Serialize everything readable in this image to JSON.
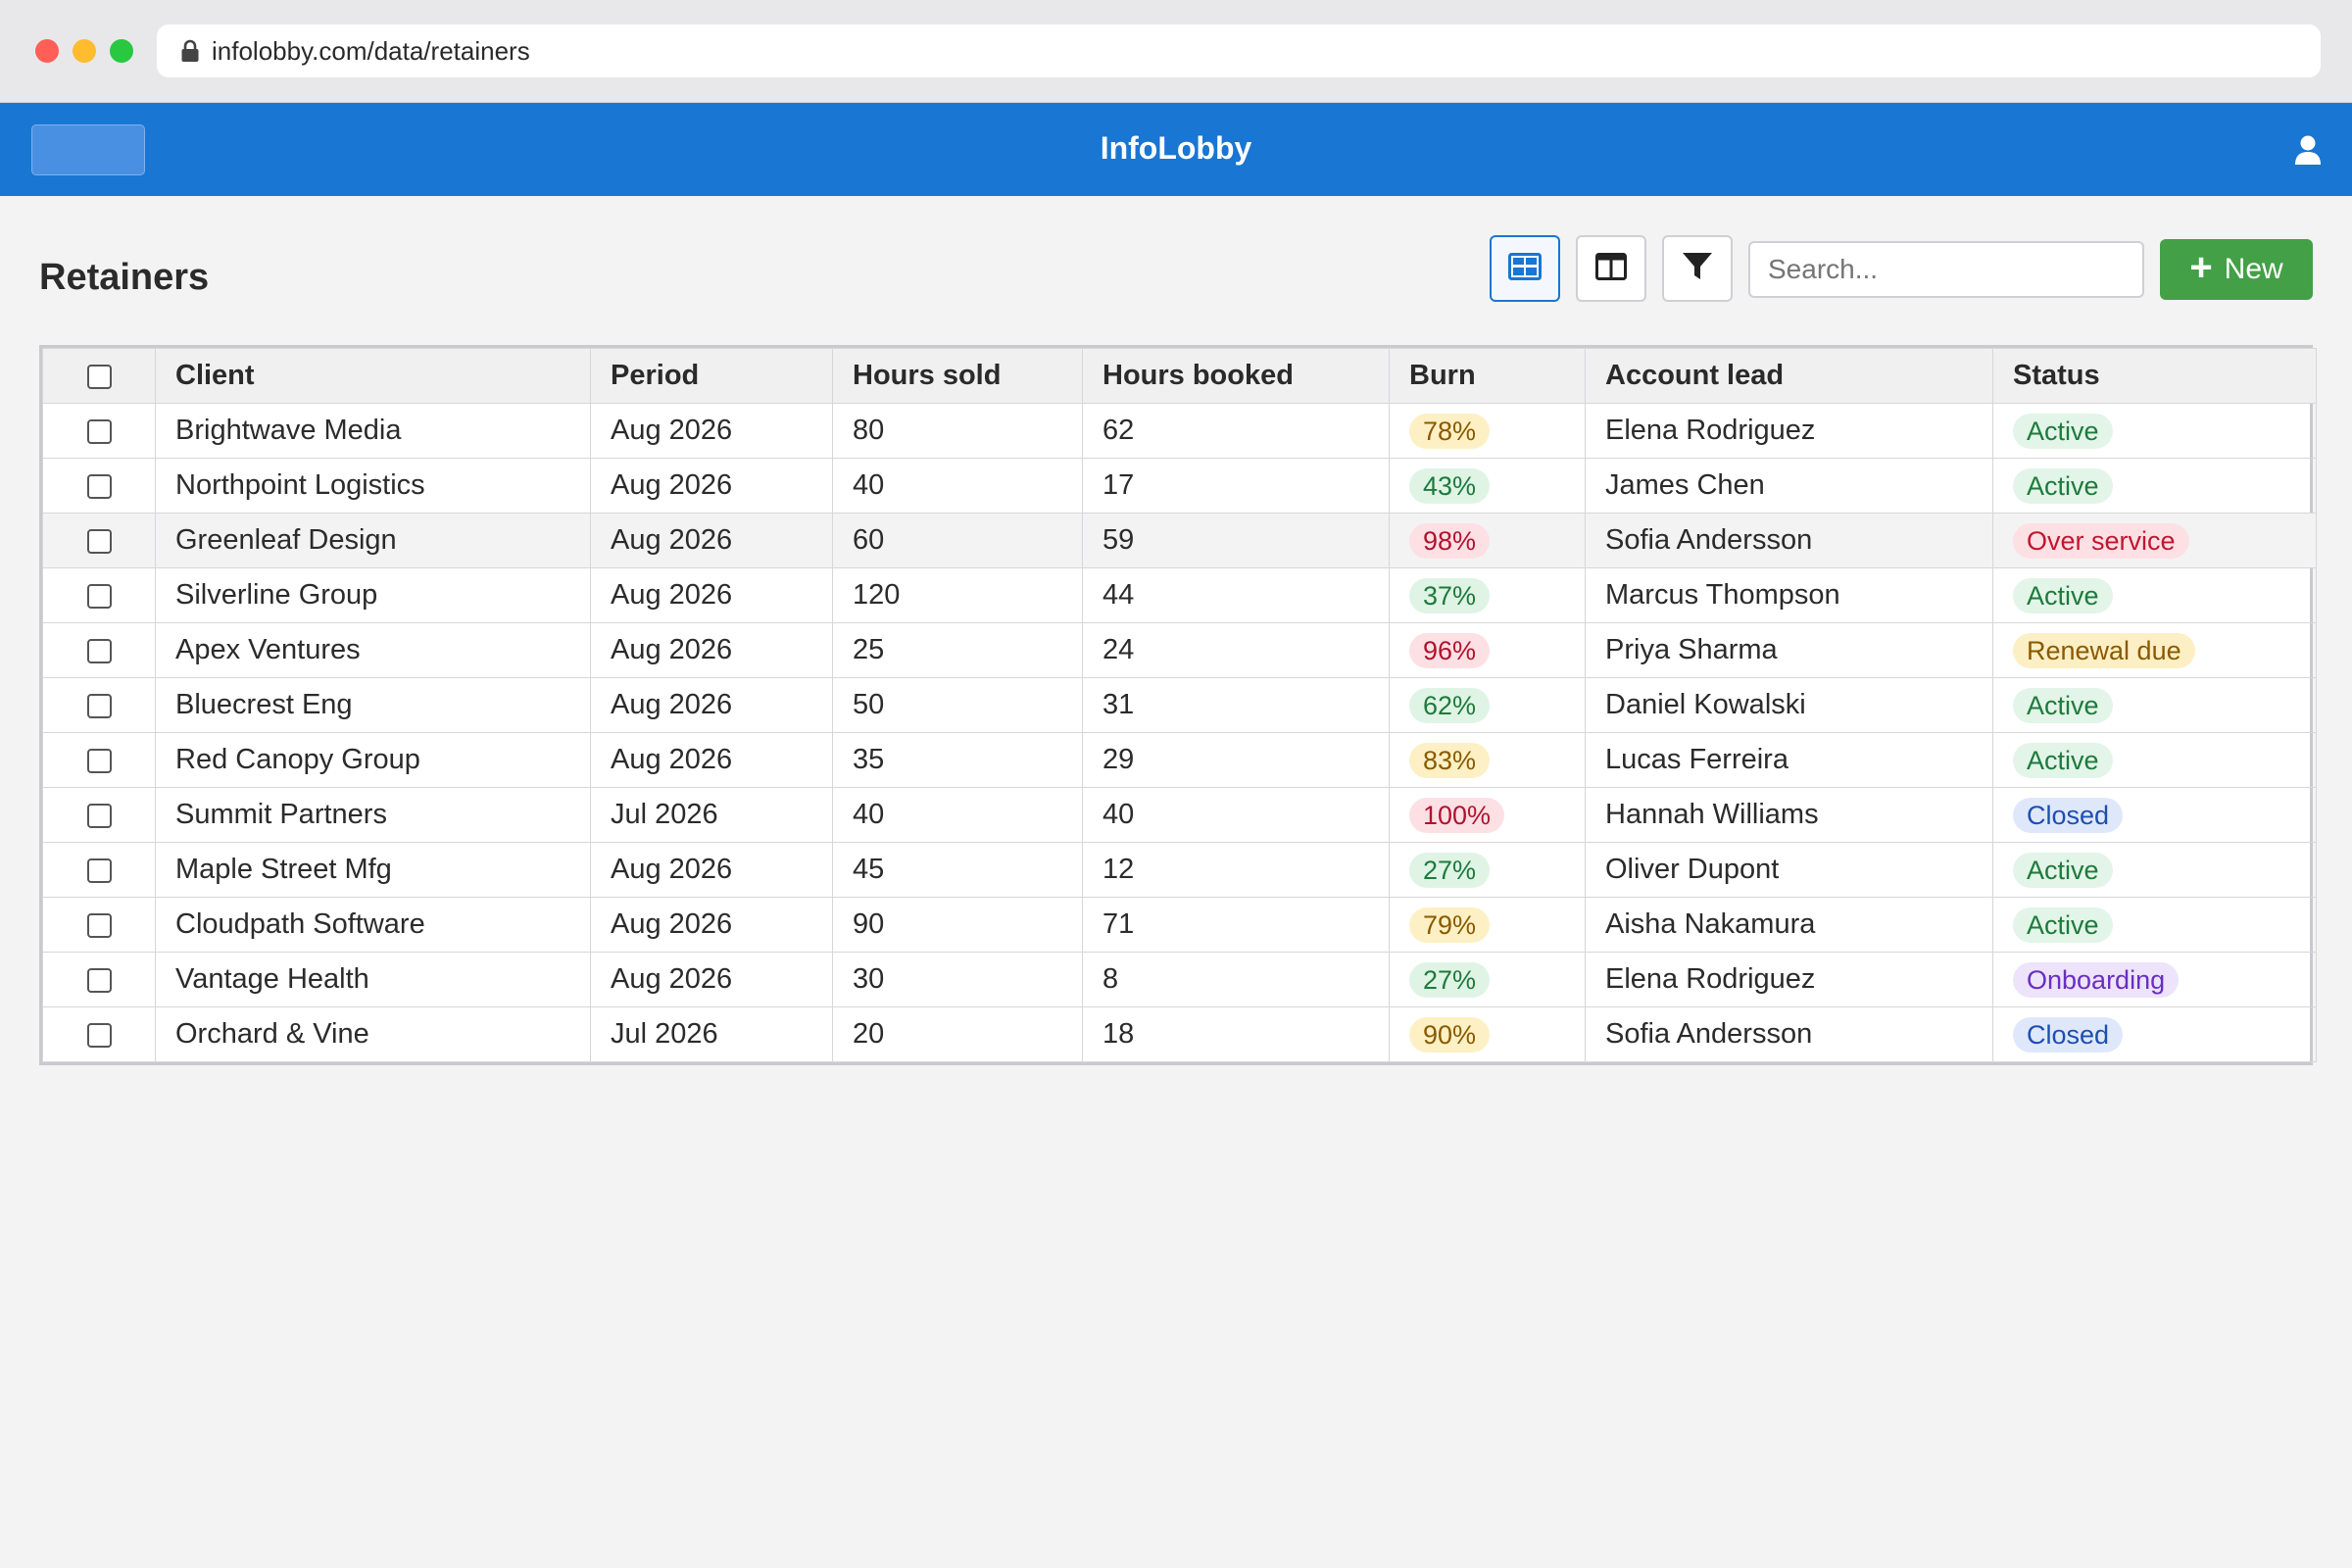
{
  "browser": {
    "url": "infolobby.com/data/retainers"
  },
  "appbar": {
    "title": "InfoLobby"
  },
  "page": {
    "title": "Retainers"
  },
  "toolbar": {
    "search_placeholder": "Search...",
    "new_label": "New"
  },
  "table": {
    "columns": [
      "Client",
      "Period",
      "Hours sold",
      "Hours booked",
      "Burn",
      "Account lead",
      "Status"
    ],
    "rows": [
      {
        "client": "Brightwave Media",
        "period": "Aug 2026",
        "sold": "80",
        "booked": "62",
        "burn": "78%",
        "burn_level": "amber",
        "lead": "Elena Rodriguez",
        "status": "Active",
        "status_kind": "active"
      },
      {
        "client": "Northpoint Logistics",
        "period": "Aug 2026",
        "sold": "40",
        "booked": "17",
        "burn": "43%",
        "burn_level": "green",
        "lead": "James Chen",
        "status": "Active",
        "status_kind": "active"
      },
      {
        "client": "Greenleaf Design",
        "period": "Aug 2026",
        "sold": "60",
        "booked": "59",
        "burn": "98%",
        "burn_level": "red",
        "lead": "Sofia Andersson",
        "status": "Over service",
        "status_kind": "over"
      },
      {
        "client": "Silverline Group",
        "period": "Aug 2026",
        "sold": "120",
        "booked": "44",
        "burn": "37%",
        "burn_level": "green",
        "lead": "Marcus Thompson",
        "status": "Active",
        "status_kind": "active"
      },
      {
        "client": "Apex Ventures",
        "period": "Aug 2026",
        "sold": "25",
        "booked": "24",
        "burn": "96%",
        "burn_level": "red",
        "lead": "Priya Sharma",
        "status": "Renewal due",
        "status_kind": "renewal"
      },
      {
        "client": "Bluecrest Eng",
        "period": "Aug 2026",
        "sold": "50",
        "booked": "31",
        "burn": "62%",
        "burn_level": "green",
        "lead": "Daniel Kowalski",
        "status": "Active",
        "status_kind": "active"
      },
      {
        "client": "Red Canopy Group",
        "period": "Aug 2026",
        "sold": "35",
        "booked": "29",
        "burn": "83%",
        "burn_level": "amber",
        "lead": "Lucas Ferreira",
        "status": "Active",
        "status_kind": "active"
      },
      {
        "client": "Summit Partners",
        "period": "Jul 2026",
        "sold": "40",
        "booked": "40",
        "burn": "100%",
        "burn_level": "red",
        "lead": "Hannah Williams",
        "status": "Closed",
        "status_kind": "closed"
      },
      {
        "client": "Maple Street Mfg",
        "period": "Aug 2026",
        "sold": "45",
        "booked": "12",
        "burn": "27%",
        "burn_level": "green",
        "lead": "Oliver Dupont",
        "status": "Active",
        "status_kind": "active"
      },
      {
        "client": "Cloudpath Software",
        "period": "Aug 2026",
        "sold": "90",
        "booked": "71",
        "burn": "79%",
        "burn_level": "amber",
        "lead": "Aisha Nakamura",
        "status": "Active",
        "status_kind": "active"
      },
      {
        "client": "Vantage Health",
        "period": "Aug 2026",
        "sold": "30",
        "booked": "8",
        "burn": "27%",
        "burn_level": "green",
        "lead": "Elena Rodriguez",
        "status": "Onboarding",
        "status_kind": "onboarding"
      },
      {
        "client": "Orchard & Vine",
        "period": "Jul 2026",
        "sold": "20",
        "booked": "18",
        "burn": "90%",
        "burn_level": "amber",
        "lead": "Sofia Andersson",
        "status": "Closed",
        "status_kind": "closed"
      }
    ]
  },
  "colors": {
    "appbar": "#1976d2",
    "new_button": "#43a047"
  }
}
